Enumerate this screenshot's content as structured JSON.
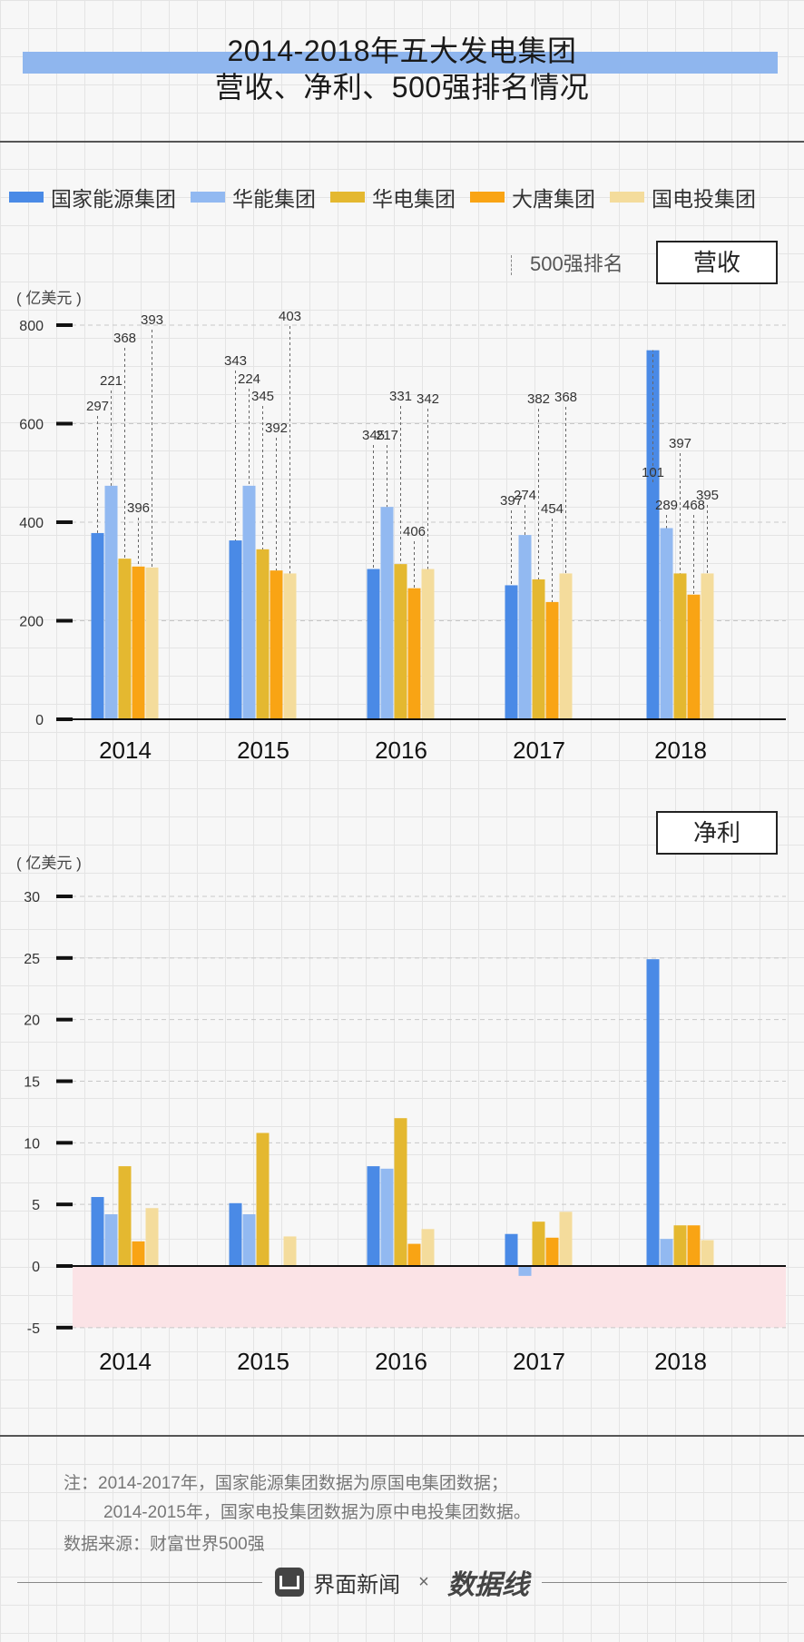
{
  "title": {
    "line1": "2014-2018年五大发电集团",
    "line2": "营收、净利、500强排名情况"
  },
  "legend": [
    {
      "name": "国家能源集团",
      "color": "#4a8ae6"
    },
    {
      "name": "华能集团",
      "color": "#92b9f1"
    },
    {
      "name": "华电集团",
      "color": "#e4b830"
    },
    {
      "name": "大唐集团",
      "color": "#f9a414"
    },
    {
      "name": "国电投集团",
      "color": "#f4dc9c"
    }
  ],
  "rank_legend": "500强排名",
  "revenue_box": "营收",
  "profit_box": "净利",
  "unit_label_1": "( 亿美元 )",
  "unit_label_2": "( 亿美元 )",
  "colors": {
    "negative_band": "#fbe3e6"
  },
  "chart_data": [
    {
      "type": "bar",
      "label": "营收",
      "unit": "( 亿美元 )",
      "categories": [
        "2014",
        "2015",
        "2016",
        "2017",
        "2018"
      ],
      "ylim": [
        0,
        800
      ],
      "yticks": [
        0,
        200,
        400,
        600,
        800
      ],
      "series": [
        {
          "name": "国家能源集团",
          "values": [
            378,
            363,
            305,
            272,
            749
          ],
          "ranks": [
            "297",
            "343",
            "345",
            "397",
            "101"
          ]
        },
        {
          "name": "华能集团",
          "values": [
            474,
            474,
            431,
            374,
            388
          ],
          "ranks": [
            "221",
            "224",
            "217",
            "274",
            "289"
          ]
        },
        {
          "name": "华电集团",
          "values": [
            326,
            345,
            315,
            284,
            296
          ],
          "ranks": [
            "368",
            "345",
            "331",
            "382",
            "397"
          ]
        },
        {
          "name": "大唐集团",
          "values": [
            310,
            302,
            266,
            238,
            253
          ],
          "ranks": [
            "396",
            "392",
            "406",
            "454",
            "468"
          ]
        },
        {
          "name": "国电投集团",
          "values": [
            308,
            296,
            305,
            296,
            296
          ],
          "ranks": [
            "393",
            "403",
            "342",
            "368",
            "395"
          ]
        }
      ]
    },
    {
      "type": "bar",
      "label": "净利",
      "unit": "( 亿美元 )",
      "categories": [
        "2014",
        "2015",
        "2016",
        "2017",
        "2018"
      ],
      "ylim": [
        -5,
        30
      ],
      "yticks": [
        -5,
        0,
        5,
        10,
        15,
        20,
        25,
        30
      ],
      "series": [
        {
          "name": "国家能源集团",
          "values": [
            5.6,
            5.1,
            8.1,
            2.6,
            24.9
          ]
        },
        {
          "name": "华能集团",
          "values": [
            4.2,
            4.2,
            7.9,
            -0.8,
            2.2
          ]
        },
        {
          "name": "华电集团",
          "values": [
            8.1,
            10.8,
            12.0,
            3.6,
            3.3
          ]
        },
        {
          "name": "大唐集团",
          "values": [
            2.0,
            null,
            1.8,
            2.3,
            3.3
          ]
        },
        {
          "name": "国电投集团",
          "values": [
            4.7,
            2.4,
            3.0,
            4.4,
            2.1
          ]
        }
      ]
    }
  ],
  "note": {
    "line1": "注：2014-2017年，国家能源集团数据为原国电集团数据；",
    "line2": "2014-2015年，国家电投集团数据为原中电投集团数据。"
  },
  "source": "数据来源：财富世界500强",
  "brand": {
    "jiemian": "界面新闻",
    "times": "×",
    "datawire": "数据线"
  }
}
